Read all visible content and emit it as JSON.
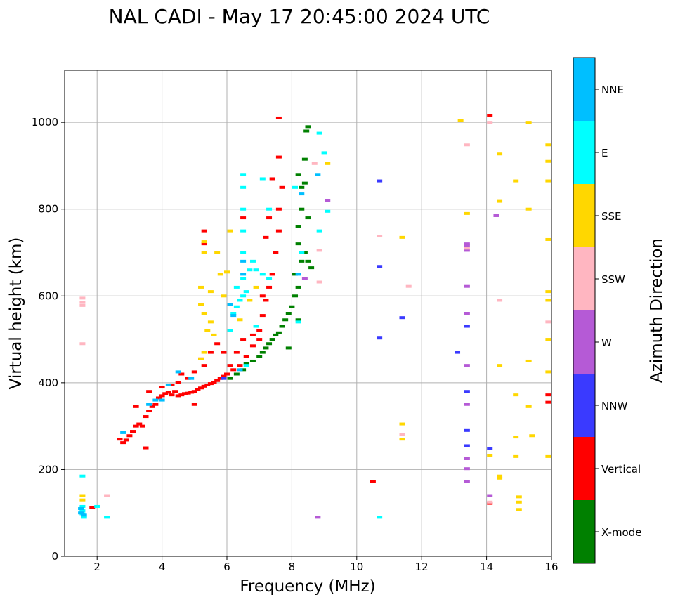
{
  "chart_data": {
    "type": "scatter",
    "title": "NAL CADI - May 17 20:45:00 2024 UTC",
    "xlabel": "Frequency (MHz)",
    "ylabel": "Virtual height (km)",
    "xlim": [
      1,
      16
    ],
    "ylim": [
      0,
      1120
    ],
    "xticks": [
      2,
      4,
      6,
      8,
      10,
      12,
      14,
      16
    ],
    "yticks": [
      0,
      200,
      400,
      600,
      800,
      1000
    ],
    "grid": true,
    "colorbar": {
      "label": "Azimuth Direction",
      "categories": [
        {
          "name": "X-mode",
          "color": "#008000"
        },
        {
          "name": "Vertical",
          "color": "#ff0000"
        },
        {
          "name": "NNW",
          "color": "#3a3aff"
        },
        {
          "name": "W",
          "color": "#b55ad6"
        },
        {
          "name": "SSW",
          "color": "#ffb6c1"
        },
        {
          "name": "SSE",
          "color": "#ffd700"
        },
        {
          "name": "E",
          "color": "#00ffff"
        },
        {
          "name": "NNE",
          "color": "#00bfff"
        }
      ]
    },
    "series": [
      {
        "name": "Vertical",
        "points": [
          [
            2.7,
            270
          ],
          [
            2.8,
            262
          ],
          [
            2.9,
            268
          ],
          [
            3.0,
            278
          ],
          [
            3.1,
            288
          ],
          [
            3.2,
            300
          ],
          [
            3.3,
            305
          ],
          [
            3.5,
            322
          ],
          [
            3.6,
            335
          ],
          [
            3.7,
            345
          ],
          [
            3.8,
            350
          ],
          [
            3.9,
            365
          ],
          [
            4.0,
            370
          ],
          [
            4.1,
            375
          ],
          [
            4.2,
            378
          ],
          [
            4.3,
            372
          ],
          [
            4.4,
            380
          ],
          [
            4.5,
            370
          ],
          [
            4.6,
            372
          ],
          [
            4.7,
            375
          ],
          [
            4.8,
            376
          ],
          [
            4.9,
            378
          ],
          [
            5.0,
            380
          ],
          [
            5.1,
            385
          ],
          [
            5.2,
            388
          ],
          [
            5.3,
            392
          ],
          [
            5.4,
            395
          ],
          [
            5.5,
            398
          ],
          [
            5.6,
            400
          ],
          [
            5.7,
            405
          ],
          [
            5.8,
            410
          ],
          [
            5.9,
            415
          ],
          [
            6.0,
            420
          ],
          [
            6.2,
            430
          ],
          [
            6.4,
            440
          ],
          [
            6.6,
            460
          ],
          [
            6.8,
            485
          ],
          [
            7.0,
            520
          ],
          [
            7.1,
            555
          ],
          [
            7.2,
            590
          ],
          [
            7.3,
            620
          ],
          [
            7.4,
            650
          ],
          [
            7.5,
            700
          ],
          [
            7.6,
            750
          ],
          [
            7.6,
            800
          ],
          [
            7.7,
            850
          ],
          [
            7.6,
            920
          ],
          [
            7.6,
            1010
          ],
          [
            7.4,
            870
          ],
          [
            7.3,
            780
          ],
          [
            6.5,
            780
          ],
          [
            7.2,
            735
          ],
          [
            3.2,
            345
          ],
          [
            3.4,
            300
          ],
          [
            3.6,
            380
          ],
          [
            4.0,
            390
          ],
          [
            4.3,
            395
          ],
          [
            4.5,
            400
          ],
          [
            4.6,
            420
          ],
          [
            4.8,
            410
          ],
          [
            5.0,
            425
          ],
          [
            5.2,
            455
          ],
          [
            5.3,
            440
          ],
          [
            5.5,
            470
          ],
          [
            5.7,
            490
          ],
          [
            5.9,
            470
          ],
          [
            6.1,
            440
          ],
          [
            6.3,
            470
          ],
          [
            6.5,
            500
          ],
          [
            6.8,
            510
          ],
          [
            7.0,
            500
          ],
          [
            7.1,
            600
          ],
          [
            5.3,
            720
          ],
          [
            5.3,
            750
          ],
          [
            5.0,
            350
          ],
          [
            3.5,
            250
          ],
          [
            1.85,
            112
          ],
          [
            14.1,
            1015
          ],
          [
            15.9,
            355
          ],
          [
            15.9,
            372
          ],
          [
            14.1,
            122
          ],
          [
            10.5,
            172
          ]
        ]
      },
      {
        "name": "X-mode",
        "points": [
          [
            6.1,
            410
          ],
          [
            6.3,
            420
          ],
          [
            6.5,
            430
          ],
          [
            6.6,
            445
          ],
          [
            6.8,
            450
          ],
          [
            7.0,
            460
          ],
          [
            7.1,
            470
          ],
          [
            7.2,
            480
          ],
          [
            7.3,
            490
          ],
          [
            7.4,
            500
          ],
          [
            7.5,
            510
          ],
          [
            7.6,
            515
          ],
          [
            7.7,
            530
          ],
          [
            7.8,
            545
          ],
          [
            7.9,
            560
          ],
          [
            8.0,
            575
          ],
          [
            8.1,
            600
          ],
          [
            8.2,
            620
          ],
          [
            8.1,
            650
          ],
          [
            8.3,
            680
          ],
          [
            8.4,
            700
          ],
          [
            8.5,
            680
          ],
          [
            8.6,
            665
          ],
          [
            8.2,
            720
          ],
          [
            8.2,
            760
          ],
          [
            8.3,
            800
          ],
          [
            8.3,
            850
          ],
          [
            8.2,
            880
          ],
          [
            8.4,
            860
          ],
          [
            8.5,
            780
          ],
          [
            8.4,
            915
          ],
          [
            8.45,
            980
          ],
          [
            8.5,
            990
          ],
          [
            8.2,
            545
          ],
          [
            7.9,
            480
          ]
        ]
      },
      {
        "name": "NNW",
        "points": [
          [
            10.7,
            865
          ],
          [
            10.7,
            668
          ],
          [
            10.7,
            503
          ],
          [
            11.4,
            550
          ],
          [
            13.1,
            470
          ],
          [
            13.4,
            530
          ],
          [
            13.4,
            380
          ],
          [
            13.4,
            290
          ],
          [
            13.4,
            255
          ],
          [
            14.1,
            248
          ],
          [
            5.9,
            410
          ]
        ]
      },
      {
        "name": "W",
        "points": [
          [
            13.4,
            440
          ],
          [
            13.4,
            350
          ],
          [
            13.4,
            225
          ],
          [
            13.4,
            202
          ],
          [
            13.4,
            172
          ],
          [
            13.4,
            560
          ],
          [
            13.4,
            622
          ],
          [
            13.4,
            705
          ],
          [
            13.4,
            715
          ],
          [
            14.1,
            140
          ],
          [
            14.3,
            785
          ],
          [
            9.1,
            820
          ],
          [
            8.8,
            90
          ],
          [
            8.4,
            640
          ],
          [
            13.4,
            720
          ]
        ]
      },
      {
        "name": "SSW",
        "points": [
          [
            1.55,
            595
          ],
          [
            1.55,
            585
          ],
          [
            1.55,
            578
          ],
          [
            1.55,
            490
          ],
          [
            2.3,
            140
          ],
          [
            10.7,
            738
          ],
          [
            11.6,
            622
          ],
          [
            11.4,
            280
          ],
          [
            13.4,
            948
          ],
          [
            14.1,
            1000
          ],
          [
            14.4,
            590
          ],
          [
            15.9,
            540
          ],
          [
            8.7,
            905
          ],
          [
            8.85,
            705
          ],
          [
            8.85,
            632
          ],
          [
            13.4,
            710
          ],
          [
            14.1,
            125
          ]
        ]
      },
      {
        "name": "SSE",
        "points": [
          [
            5.3,
            725
          ],
          [
            5.3,
            700
          ],
          [
            5.2,
            620
          ],
          [
            5.2,
            580
          ],
          [
            5.3,
            560
          ],
          [
            5.5,
            540
          ],
          [
            5.4,
            520
          ],
          [
            5.6,
            510
          ],
          [
            5.3,
            470
          ],
          [
            5.2,
            455
          ],
          [
            5.8,
            650
          ],
          [
            6.0,
            655
          ],
          [
            5.9,
            600
          ],
          [
            5.5,
            610
          ],
          [
            5.7,
            700
          ],
          [
            6.1,
            750
          ],
          [
            6.4,
            545
          ],
          [
            6.7,
            590
          ],
          [
            6.9,
            620
          ],
          [
            9.1,
            905
          ],
          [
            11.4,
            735
          ],
          [
            11.4,
            305
          ],
          [
            11.4,
            270
          ],
          [
            13.2,
            1005
          ],
          [
            13.4,
            790
          ],
          [
            14.4,
            927
          ],
          [
            14.4,
            818
          ],
          [
            14.4,
            440
          ],
          [
            14.4,
            185
          ],
          [
            14.4,
            180
          ],
          [
            14.9,
            865
          ],
          [
            14.9,
            372
          ],
          [
            14.9,
            275
          ],
          [
            14.9,
            230
          ],
          [
            15.0,
            137
          ],
          [
            15.0,
            125
          ],
          [
            15.0,
            108
          ],
          [
            15.3,
            1000
          ],
          [
            15.3,
            800
          ],
          [
            15.3,
            450
          ],
          [
            15.3,
            345
          ],
          [
            15.4,
            278
          ],
          [
            15.9,
            948
          ],
          [
            15.9,
            910
          ],
          [
            15.9,
            865
          ],
          [
            15.9,
            730
          ],
          [
            15.9,
            610
          ],
          [
            15.9,
            590
          ],
          [
            15.9,
            500
          ],
          [
            15.9,
            425
          ],
          [
            15.9,
            230
          ],
          [
            14.1,
            232
          ],
          [
            1.55,
            140
          ],
          [
            1.55,
            130
          ]
        ]
      },
      {
        "name": "E",
        "points": [
          [
            6.2,
            560
          ],
          [
            6.3,
            575
          ],
          [
            6.4,
            590
          ],
          [
            6.5,
            600
          ],
          [
            6.6,
            610
          ],
          [
            6.3,
            620
          ],
          [
            6.5,
            640
          ],
          [
            6.7,
            660
          ],
          [
            6.8,
            680
          ],
          [
            6.9,
            660
          ],
          [
            7.1,
            650
          ],
          [
            7.3,
            640
          ],
          [
            6.5,
            700
          ],
          [
            6.5,
            750
          ],
          [
            6.5,
            800
          ],
          [
            6.5,
            850
          ],
          [
            6.5,
            880
          ],
          [
            7.1,
            870
          ],
          [
            7.3,
            800
          ],
          [
            6.9,
            530
          ],
          [
            6.1,
            520
          ],
          [
            6.6,
            440
          ],
          [
            8.2,
            540
          ],
          [
            8.3,
            700
          ],
          [
            8.1,
            850
          ],
          [
            8.85,
            975
          ],
          [
            8.85,
            750
          ],
          [
            9.0,
            930
          ],
          [
            9.1,
            795
          ],
          [
            1.55,
            115
          ],
          [
            1.55,
            105
          ],
          [
            1.55,
            98
          ],
          [
            1.6,
            90
          ],
          [
            2.0,
            115
          ],
          [
            2.3,
            90
          ],
          [
            10.7,
            90
          ],
          [
            1.55,
            185
          ]
        ]
      },
      {
        "name": "NNE",
        "points": [
          [
            1.5,
            110
          ],
          [
            1.5,
            100
          ],
          [
            1.6,
            95
          ],
          [
            2.8,
            285
          ],
          [
            3.6,
            350
          ],
          [
            3.8,
            360
          ],
          [
            4.2,
            395
          ],
          [
            4.5,
            425
          ],
          [
            4.9,
            410
          ],
          [
            6.4,
            430
          ],
          [
            6.2,
            555
          ],
          [
            6.1,
            580
          ],
          [
            6.5,
            650
          ],
          [
            6.5,
            680
          ],
          [
            8.3,
            835
          ],
          [
            8.8,
            880
          ],
          [
            8.2,
            650
          ],
          [
            4.0,
            360
          ]
        ]
      }
    ]
  }
}
